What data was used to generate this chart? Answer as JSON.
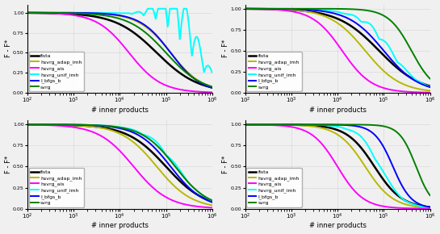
{
  "legend_labels": [
    "fista",
    "hsvrg_adap_imh",
    "hsvrg_ais",
    "hsvrg_unif_imh",
    "l_bfgs_b",
    "svrg"
  ],
  "colors": [
    "black",
    "#b8b800",
    "magenta",
    "cyan",
    "blue",
    "green"
  ],
  "xlabel": "# inner products",
  "ylabel": "F - F*",
  "background_color": "#f0f0f0",
  "xmin": 100,
  "xmax": 1000000,
  "n_points": 600
}
